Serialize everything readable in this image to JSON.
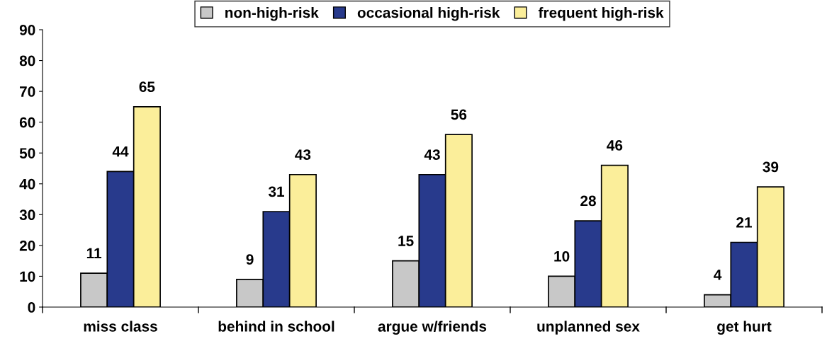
{
  "chart_data": {
    "type": "bar",
    "categories": [
      "miss class",
      "behind in school",
      "argue w/friends",
      "unplanned sex",
      "get hurt"
    ],
    "series": [
      {
        "name": "non-high-risk",
        "color": "#c8c8c8",
        "values": [
          11,
          9,
          15,
          10,
          4
        ]
      },
      {
        "name": "occasional high-risk",
        "color": "#283a8c",
        "values": [
          44,
          31,
          43,
          28,
          21
        ]
      },
      {
        "name": "frequent high-risk",
        "color": "#fbee9a",
        "values": [
          65,
          43,
          56,
          46,
          39
        ]
      }
    ],
    "ylim": [
      0,
      90
    ],
    "yticks": [
      0,
      10,
      20,
      30,
      40,
      50,
      60,
      70,
      80,
      90
    ],
    "grid": false,
    "legend": "top",
    "data_labels": true
  }
}
